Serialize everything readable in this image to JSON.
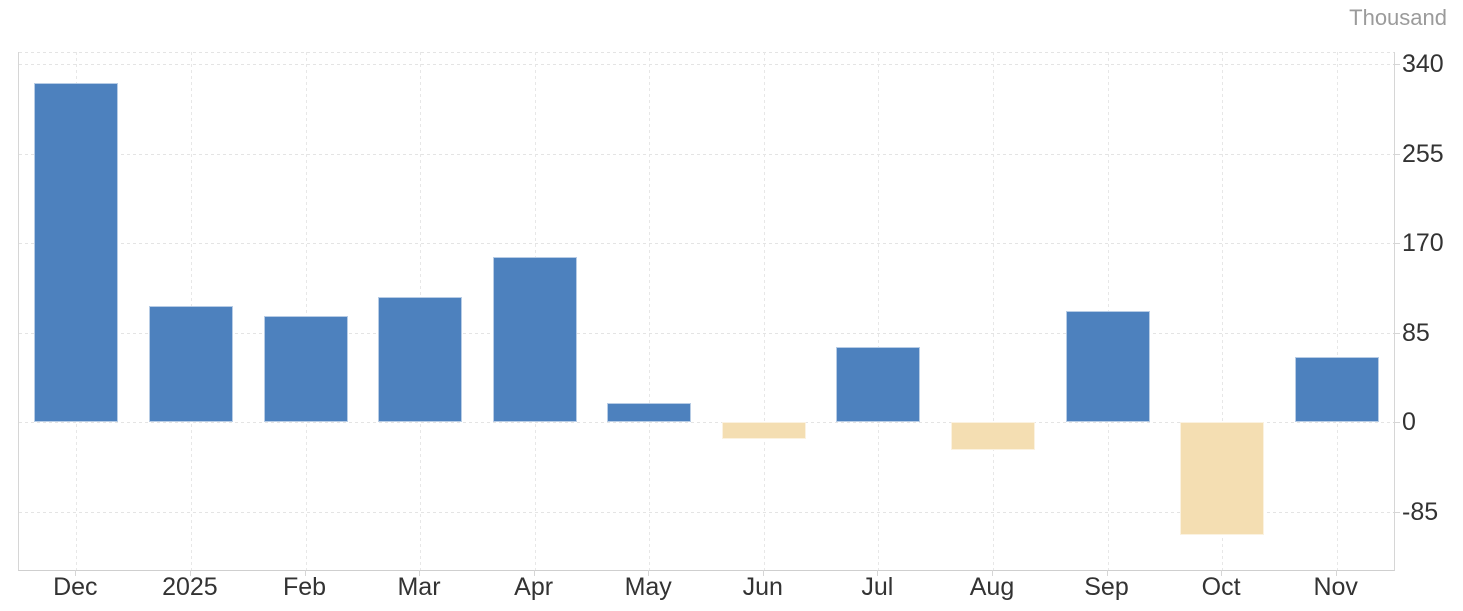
{
  "unit": {
    "label": "Thousand"
  },
  "colors": {
    "positive_bar": "#4d81be",
    "negative_bar": "#f4deb2",
    "grid_line": "#e4e4e4",
    "axis_line": "#d6d6d6",
    "tick_label": "#333333",
    "unit_label": "#9b9b9b",
    "background": "#ffffff"
  },
  "chart_data": {
    "type": "bar",
    "title": "",
    "xlabel": "",
    "ylabel": "Thousand",
    "categories": [
      "Dec",
      "2025",
      "Feb",
      "Mar",
      "Apr",
      "May",
      "Jun",
      "Jul",
      "Aug",
      "Sep",
      "Oct",
      "Nov"
    ],
    "values": [
      322,
      110,
      101,
      119,
      157,
      18,
      -16,
      71,
      -27,
      106,
      -107,
      62
    ],
    "y_ticks": [
      340,
      255,
      170,
      85,
      0,
      -85
    ],
    "ylim": [
      -140.5,
      351.5
    ],
    "grid": "dotted",
    "legend_position": "none",
    "y_axis_side": "right",
    "positive_color": "#4d81be",
    "negative_color": "#f4deb2"
  }
}
